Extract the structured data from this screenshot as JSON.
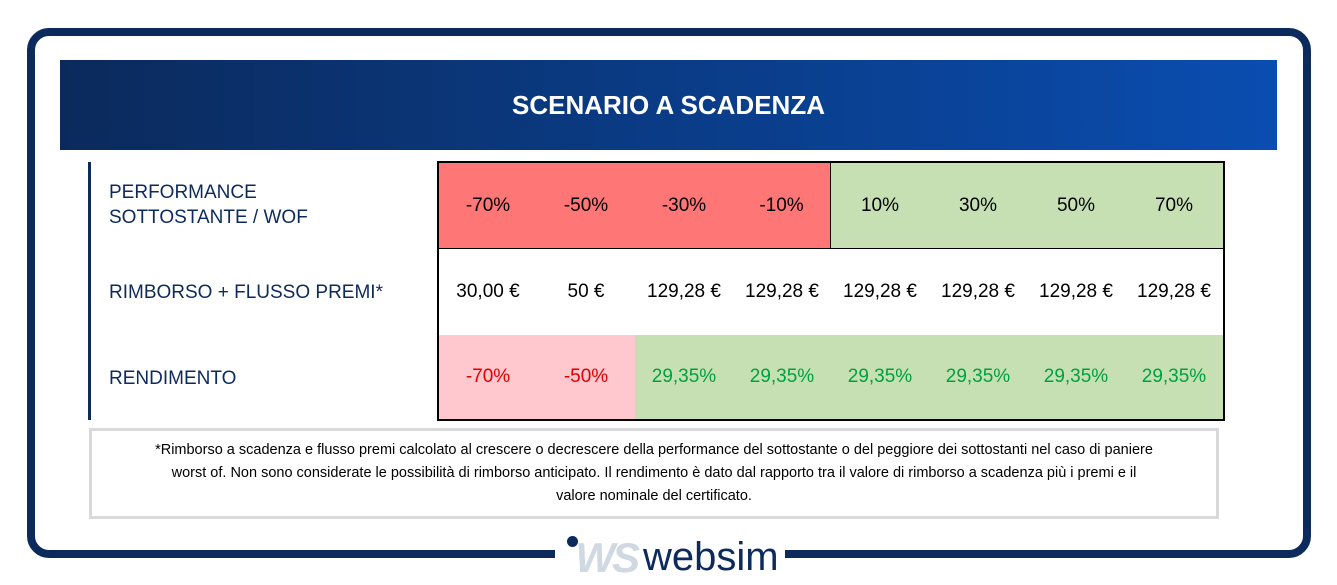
{
  "title": "SCENARIO A SCADENZA",
  "rows": {
    "performance_label": "PERFORMANCE SOTTOSTANTE / WOF",
    "rimborso_label": "RIMBORSO + FLUSSO PREMI*",
    "rendimento_label": "RENDIMENTO"
  },
  "performance": [
    "-70%",
    "-50%",
    "-30%",
    "-10%",
    "10%",
    "30%",
    "50%",
    "70%"
  ],
  "rimborso": [
    "30,00 €",
    "50 €",
    "129,28 €",
    "129,28 €",
    "129,28 €",
    "129,28 €",
    "129,28 €",
    "129,28 €"
  ],
  "rendimento": [
    "-70%",
    "-50%",
    "29,35%",
    "29,35%",
    "29,35%",
    "29,35%",
    "29,35%",
    "29,35%"
  ],
  "note": "*Rimborso a scadenza e flusso premi calcolato al crescere o decrescere della performance del sottostante o del peggiore dei sottostanti nel caso di paniere worst of. Non sono considerate le possibilità di rimborso anticipato. Il rendimento è dato dal rapporto tra il valore di rimborso a scadenza più i premi e il valore nominale del certificato.",
  "logo": {
    "mark": "WS",
    "brand": "websim"
  },
  "colors": {
    "navy": "#0c2a5c",
    "negative_bg": "#ff7676",
    "positive_bg": "#c6e0b4",
    "neg_yield_bg": "#ffc7ce"
  }
}
